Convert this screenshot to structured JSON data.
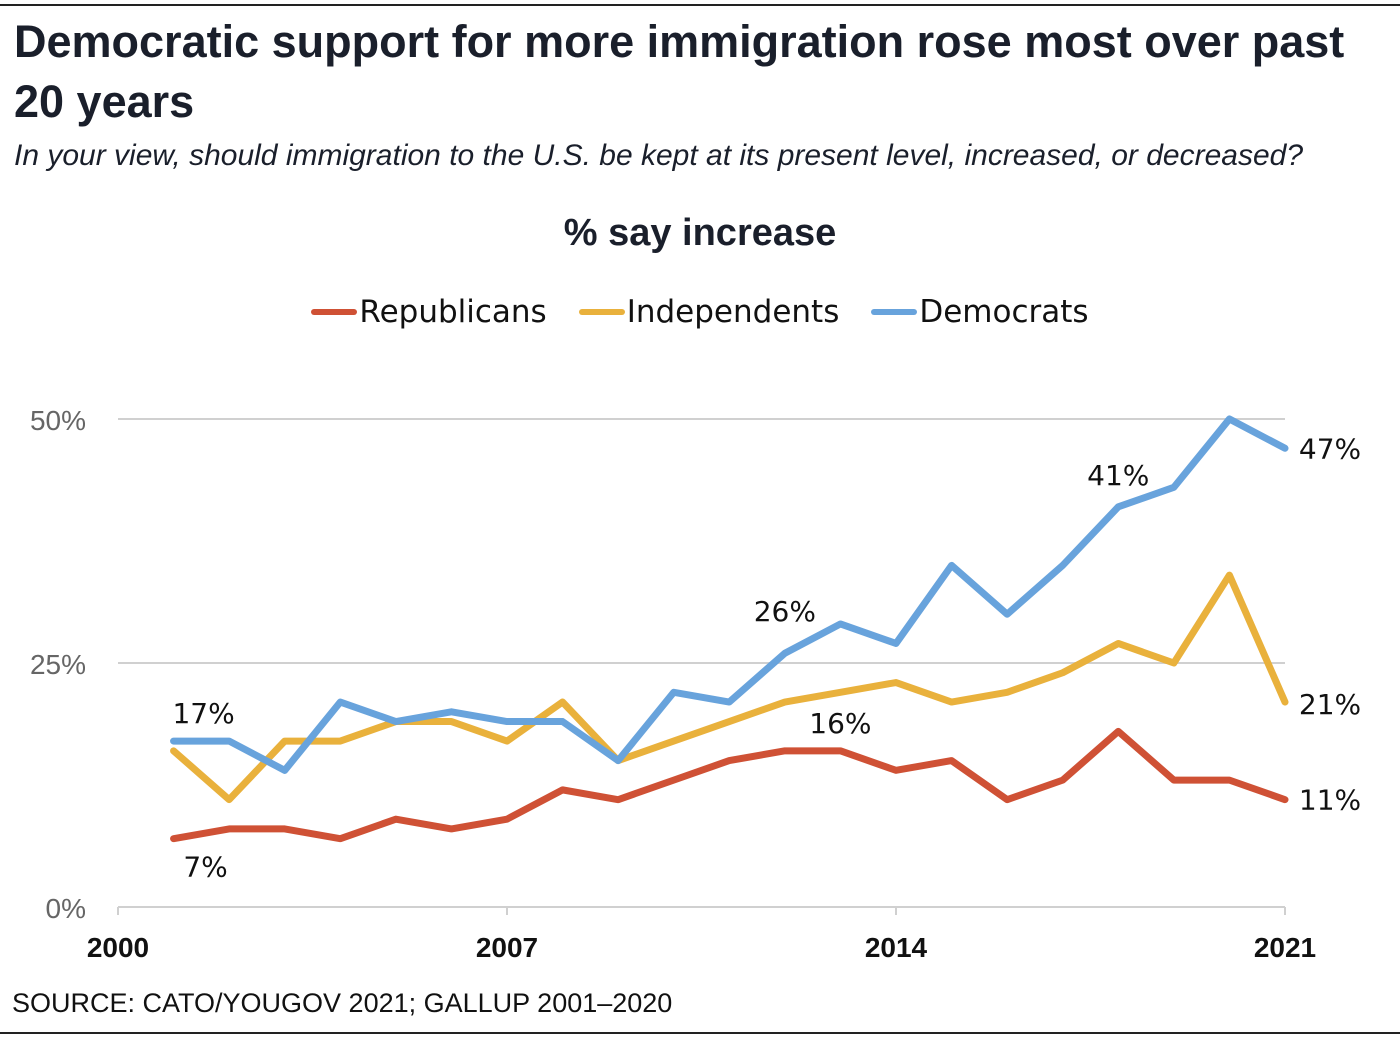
{
  "title": "Democratic support for more immigration rose most over past 20 years",
  "subtitle": "In your view, should immigration to the U.S. be kept at its present level, increased, or decreased?",
  "source": "SOURCE: CATO/YOUGOV 2021; GALLUP 2001–2020",
  "chart_data": {
    "type": "line",
    "title": "% say increase",
    "x": [
      2001,
      2002,
      2003,
      2004,
      2005,
      2006,
      2007,
      2008,
      2009,
      2010,
      2011,
      2012,
      2013,
      2014,
      2015,
      2016,
      2017,
      2018,
      2019,
      2020,
      2021
    ],
    "series": [
      {
        "name": "Republicans",
        "color": "#cf5135",
        "values": [
          7,
          8,
          8,
          7,
          9,
          8,
          9,
          12,
          11,
          13,
          15,
          16,
          16,
          14,
          15,
          11,
          13,
          18,
          13,
          13,
          11
        ]
      },
      {
        "name": "Independents",
        "color": "#e9b13c",
        "values": [
          16,
          11,
          17,
          17,
          19,
          19,
          17,
          21,
          15,
          17,
          19,
          21,
          22,
          23,
          21,
          22,
          24,
          27,
          25,
          34,
          21
        ]
      },
      {
        "name": "Democrats",
        "color": "#68a3dc",
        "values": [
          17,
          17,
          14,
          21,
          19,
          20,
          19,
          19,
          15,
          22,
          21,
          26,
          29,
          27,
          35,
          30,
          35,
          41,
          43,
          50,
          47
        ]
      }
    ],
    "data_labels": [
      {
        "series": "Democrats",
        "x": 2001,
        "text": "17%"
      },
      {
        "series": "Republicans",
        "x": 2001,
        "text": "7%"
      },
      {
        "series": "Democrats",
        "x": 2012,
        "text": "26%"
      },
      {
        "series": "Republicans",
        "x": 2013,
        "text": "16%"
      },
      {
        "series": "Democrats",
        "x": 2018,
        "text": "41%"
      },
      {
        "series": "Democrats",
        "x": 2021,
        "text": "47%"
      },
      {
        "series": "Independents",
        "x": 2021,
        "text": "21%"
      },
      {
        "series": "Republicans",
        "x": 2021,
        "text": "11%"
      }
    ],
    "xticks": [
      "2000",
      "2007",
      "2014",
      "2021"
    ],
    "xlim": [
      2000,
      2021
    ],
    "yticks": [
      "0%",
      "25%",
      "50%"
    ],
    "ylim": [
      0,
      50
    ],
    "grid": true,
    "legend_position": "top-center"
  }
}
